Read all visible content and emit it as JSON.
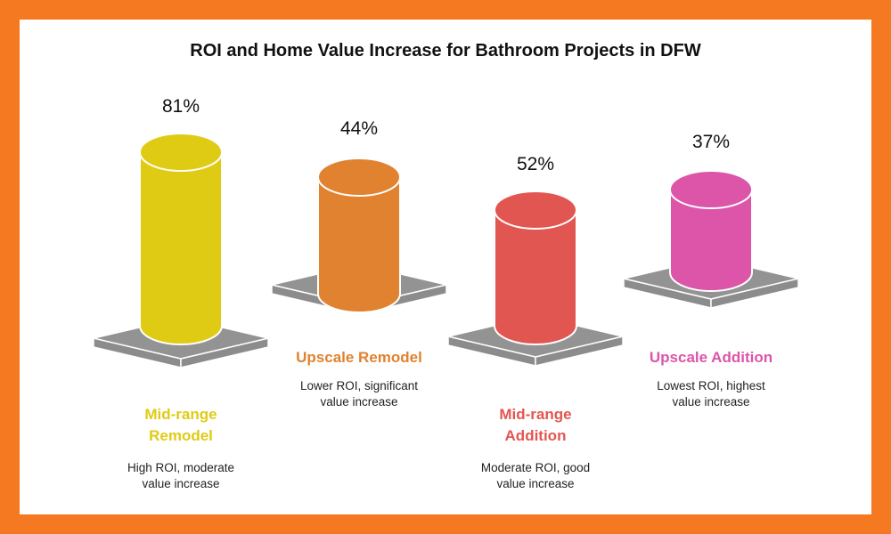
{
  "chart_data": {
    "type": "bar",
    "title": "ROI and Home Value Increase for Bathroom Projects in DFW",
    "categories": [
      "Mid-range Remodel",
      "Upscale Remodel",
      "Mid-range Addition",
      "Upscale Addition"
    ],
    "values": [
      81,
      44,
      52,
      37
    ],
    "value_labels": [
      "81%",
      "44%",
      "52%",
      "37%"
    ],
    "descriptions": [
      "High ROI, moderate value increase",
      "Lower ROI, significant value increase",
      "Moderate ROI, good value increase",
      "Lowest ROI, highest value increase"
    ],
    "colors": [
      "#e0cb14",
      "#e0822f",
      "#e25651",
      "#dc55a8"
    ],
    "style": "3d-cylinders"
  },
  "colors": {
    "frame": "#f47920",
    "platform": "#939393"
  }
}
